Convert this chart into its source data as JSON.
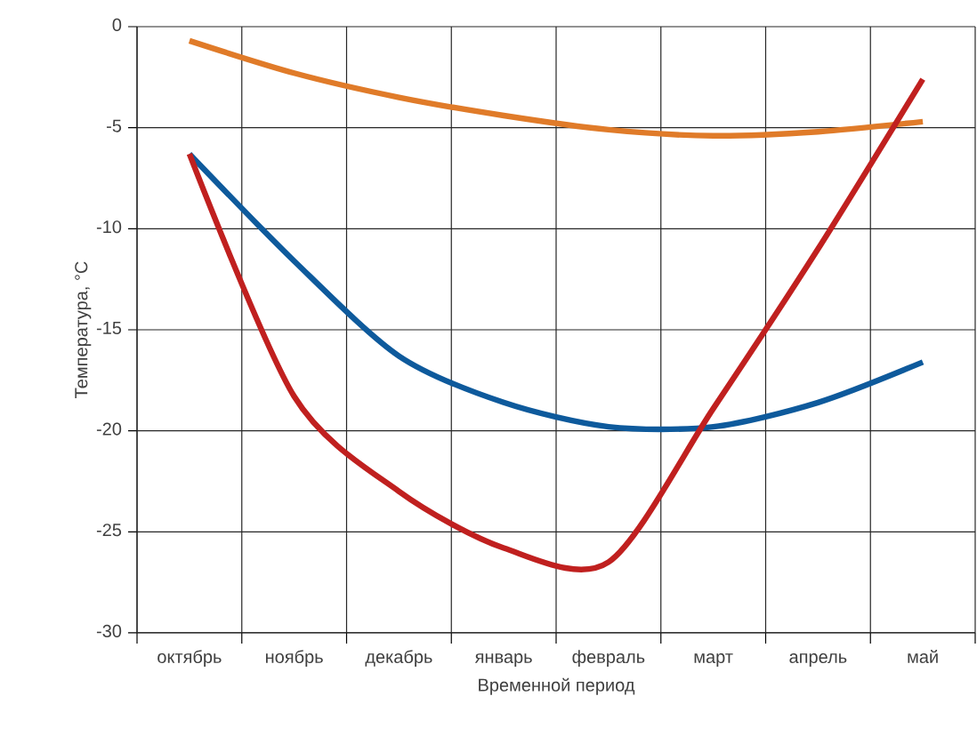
{
  "chart_data": {
    "type": "line",
    "xlabel": "Временной период",
    "ylabel": "Температура, °С",
    "categories": [
      "октябрь",
      "ноябрь",
      "декабрь",
      "январь",
      "февраль",
      "март",
      "апрель",
      "май"
    ],
    "series": [
      {
        "color": "#e07b29",
        "values": [
          -0.7,
          -2.3,
          -3.5,
          -4.4,
          -5.1,
          -5.4,
          -5.2,
          -4.7
        ]
      },
      {
        "color": "#0e5a9c",
        "values": [
          -6.3,
          -11.6,
          -16.3,
          -18.6,
          -19.8,
          -19.8,
          -18.6,
          -16.6
        ]
      },
      {
        "color": "#c0201f",
        "values": [
          -6.3,
          -18.3,
          -23.0,
          -25.8,
          -26.5,
          -18.9,
          -11.0,
          -2.6
        ]
      }
    ],
    "ylim": [
      -30,
      0
    ],
    "yticks": [
      -30,
      -25,
      -20,
      -15,
      -10,
      -5,
      0
    ],
    "grid": true,
    "marker": "none",
    "line_style": "solid"
  }
}
